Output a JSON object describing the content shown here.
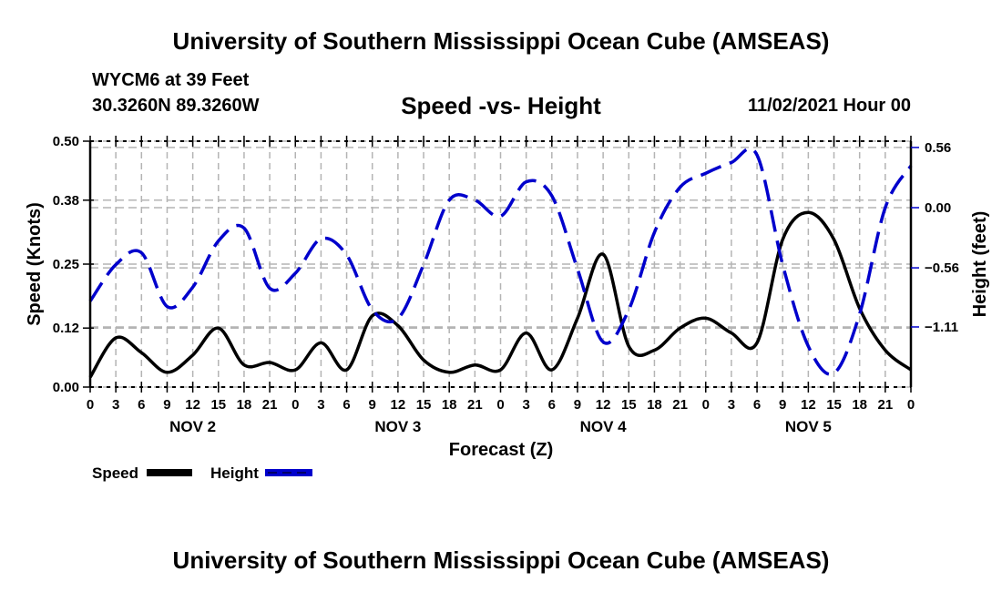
{
  "header": {
    "main_title": "University of Southern Mississippi Ocean Cube (AMSEAS)",
    "station": "WYCM6 at 39 Feet",
    "coords": "30.3260N  89.3260W",
    "subtitle": "Speed -vs- Height",
    "datestamp": "11/02/2021 Hour 00"
  },
  "footer": {
    "title": "University of Southern Mississippi Ocean Cube (AMSEAS)"
  },
  "chart_data": {
    "type": "line",
    "title": "Speed -vs- Height",
    "xlabel": "Forecast (Z)",
    "ylabel": "Speed (Knots)",
    "y2label": "Height (feet)",
    "x_hours": [
      0,
      3,
      6,
      9,
      12,
      15,
      18,
      21,
      24,
      27,
      30,
      33,
      36,
      39,
      42,
      45,
      48,
      51,
      54,
      57,
      60,
      63,
      66,
      69,
      72,
      75,
      78,
      81,
      84,
      87,
      90,
      93,
      96
    ],
    "x_tick_labels": [
      "0",
      "3",
      "6",
      "9",
      "12",
      "15",
      "18",
      "21",
      "0",
      "3",
      "6",
      "9",
      "12",
      "15",
      "18",
      "21",
      "0",
      "3",
      "6",
      "9",
      "12",
      "15",
      "18",
      "21",
      "0",
      "3",
      "6",
      "9",
      "12",
      "15",
      "18",
      "21",
      "0"
    ],
    "day_labels": [
      {
        "label": "NOV 2",
        "hour": 12
      },
      {
        "label": "NOV 3",
        "hour": 36
      },
      {
        "label": "NOV 4",
        "hour": 60
      },
      {
        "label": "NOV 5",
        "hour": 84
      }
    ],
    "xlim": [
      0,
      96
    ],
    "ylim": [
      0,
      0.5
    ],
    "y_ticks": [
      0.0,
      0.12,
      0.25,
      0.38,
      0.5
    ],
    "y_tick_labels": [
      "0.00",
      "0.12",
      "0.25",
      "0.38",
      "0.50"
    ],
    "y2lim": [
      -1.7,
      0.6
    ],
    "y2_ticks": [
      -1.11,
      -0.56,
      0.0,
      0.56
    ],
    "y2_tick_labels": [
      "−1.11",
      "−0.56",
      "0.00",
      "0.56"
    ],
    "grid": true,
    "legend_position": "bottom-left",
    "series": [
      {
        "name": "Speed",
        "axis": "left",
        "color": "#000000",
        "style": "solid",
        "values": [
          0.02,
          0.1,
          0.07,
          0.03,
          0.065,
          0.12,
          0.045,
          0.05,
          0.035,
          0.09,
          0.035,
          0.145,
          0.125,
          0.055,
          0.03,
          0.045,
          0.035,
          0.11,
          0.035,
          0.14,
          0.27,
          0.083,
          0.075,
          0.12,
          0.14,
          0.11,
          0.09,
          0.3,
          0.355,
          0.3,
          0.16,
          0.075,
          0.035
        ]
      },
      {
        "name": "Height",
        "axis": "right",
        "color": "#0000cc",
        "style": "dashed",
        "values": [
          -0.87,
          -0.53,
          -0.42,
          -0.92,
          -0.74,
          -0.31,
          -0.19,
          -0.75,
          -0.61,
          -0.29,
          -0.44,
          -0.95,
          -1.03,
          -0.53,
          0.07,
          0.07,
          -0.08,
          0.24,
          0.11,
          -0.57,
          -1.25,
          -0.95,
          -0.23,
          0.19,
          0.32,
          0.42,
          0.49,
          -0.53,
          -1.29,
          -1.54,
          -0.99,
          0.0,
          0.39
        ]
      }
    ]
  }
}
